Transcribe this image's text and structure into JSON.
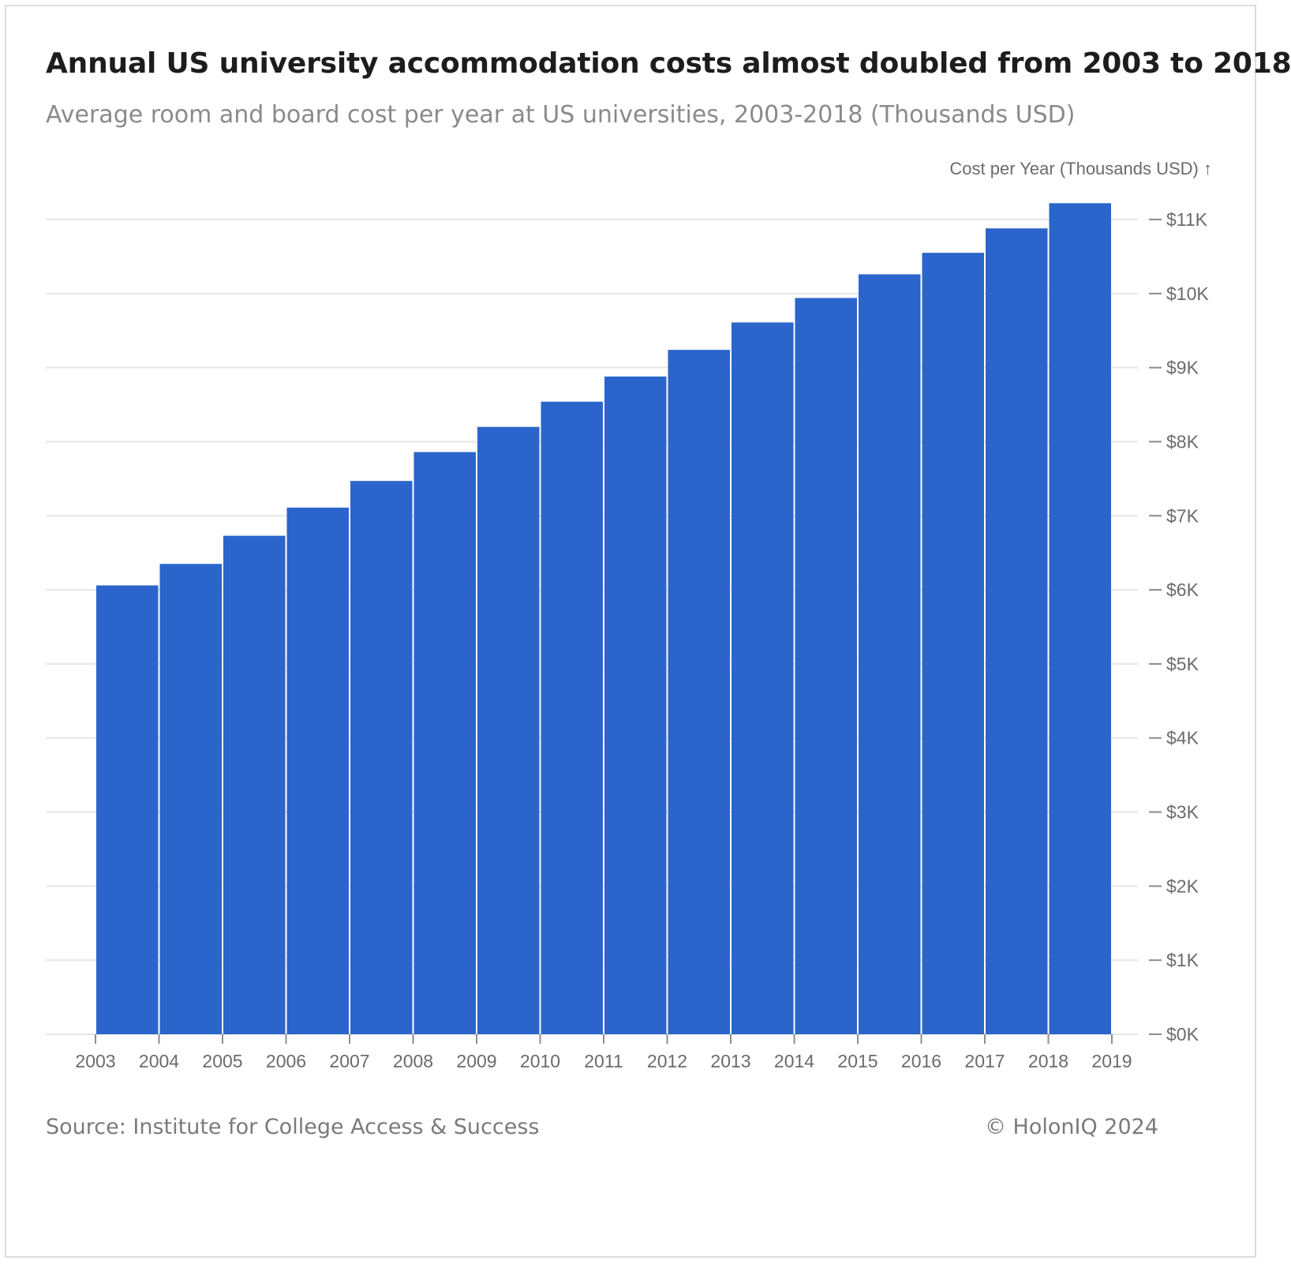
{
  "header": {
    "title": "Annual US university accommodation costs almost doubled from 2003 to 2018",
    "subtitle": "Average room and board cost per year at US universities, 2003-2018 (Thousands USD)"
  },
  "footer": {
    "source": "Source: Institute for College Access & Success",
    "copyright": "© HolonIQ 2024"
  },
  "chart_data": {
    "type": "bar",
    "title": "Annual US university accommodation costs almost doubled from 2003 to 2018",
    "subtitle": "Average room and board cost per year at US universities, 2003-2018 (Thousands USD)",
    "xlabel": "",
    "ylabel": "Cost per Year (Thousands USD) ↑",
    "bin_edges": [
      "2003",
      "2004",
      "2005",
      "2006",
      "2007",
      "2008",
      "2009",
      "2010",
      "2011",
      "2012",
      "2013",
      "2014",
      "2015",
      "2016",
      "2017",
      "2018",
      "2019"
    ],
    "categories": [
      "2003",
      "2004",
      "2005",
      "2006",
      "2007",
      "2008",
      "2009",
      "2010",
      "2011",
      "2012",
      "2013",
      "2014",
      "2015",
      "2016",
      "2017",
      "2018"
    ],
    "values": [
      6.06,
      6.35,
      6.73,
      7.11,
      7.47,
      7.86,
      8.2,
      8.54,
      8.88,
      9.24,
      9.61,
      9.94,
      10.26,
      10.55,
      10.88,
      11.22
    ],
    "ylim": [
      0,
      11
    ],
    "y_ticks": [
      0,
      1,
      2,
      3,
      4,
      5,
      6,
      7,
      8,
      9,
      10,
      11
    ],
    "y_tick_labels": [
      "$0K",
      "$1K",
      "$2K",
      "$3K",
      "$4K",
      "$5K",
      "$6K",
      "$7K",
      "$8K",
      "$9K",
      "$10K",
      "$11K"
    ],
    "y_axis_side": "right",
    "grid": true,
    "legend": "none",
    "colors": {
      "bar": "#2b65cc",
      "grid": "#e6e6e6",
      "axis_text": "#6b6b6b"
    }
  }
}
